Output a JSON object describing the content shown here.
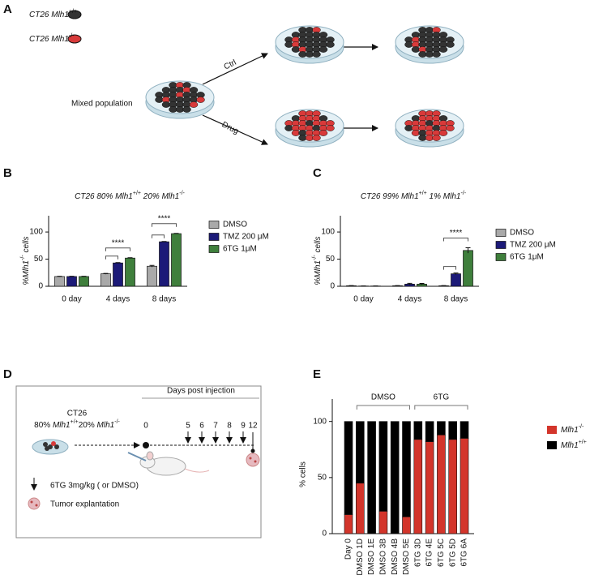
{
  "panel_labels": [
    "A",
    "B",
    "C",
    "D",
    "E"
  ],
  "panel_a": {
    "legend": [
      [
        {
          "text": "CT26 ",
          "italic": true
        },
        {
          "text": "Mlh1",
          "italic": true
        },
        {
          "text": "+/+",
          "sup": true
        }
      ],
      [
        {
          "text": "CT26 ",
          "italic": true
        },
        {
          "text": "Mlh1",
          "italic": true
        },
        {
          "text": "-/-",
          "sup": true
        }
      ]
    ],
    "mixed": "Mixed population",
    "ctrl": "Ctrl",
    "drug": "Drug"
  },
  "panel_d": {
    "cell_line": "CT26",
    "mix": [
      {
        "text": "80% "
      },
      {
        "text": "Mlh1",
        "italic": true
      },
      {
        "text": "+/+",
        "sup": true
      },
      {
        "text": "20% "
      },
      {
        "text": "Mlh1",
        "italic": true
      },
      {
        "text": "-/-",
        "sup": true
      }
    ],
    "timeline_title": "Days post injection",
    "days": [
      0,
      5,
      6,
      7,
      8,
      9,
      12
    ],
    "treatment": "6TG 3mg/kg ( or DMSO)",
    "endpoint": "Tumor explantation"
  },
  "chart_data": [
    {
      "type": "bar",
      "title": [
        {
          "text": "CT26  80% ",
          "italic": true
        },
        {
          "text": "Mlh1",
          "italic": true
        },
        {
          "text": "+/+",
          "sup": true
        },
        {
          "text": " 20% ",
          "italic": true
        },
        {
          "text": "Mlh1",
          "italic": true
        },
        {
          "text": "-/-",
          "sup": true
        }
      ],
      "y_label": [
        {
          "text": "%",
          "italic": true
        },
        {
          "text": "Mlh1",
          "italic": true
        },
        {
          "text": "-/-",
          "sup": true
        },
        {
          "text": " cells",
          "italic": true
        }
      ],
      "categories": [
        "0 day",
        "4 days",
        "8 days"
      ],
      "series": [
        {
          "name": "DMSO",
          "color": "#a9a9a9",
          "values": [
            18,
            23,
            37
          ],
          "errors": [
            0.5,
            0.8,
            1.5
          ]
        },
        {
          "name": "TMZ 200 μM",
          "color": "#1c1a78",
          "values": [
            18,
            43,
            82
          ],
          "errors": [
            0.4,
            0.8,
            0.6
          ]
        },
        {
          "name": "6TG 1μM",
          "color": "#3f7f3c",
          "values": [
            18,
            52,
            97
          ],
          "errors": [
            0.4,
            0.7,
            0.5
          ]
        }
      ],
      "annotations": [
        null,
        "****",
        "****"
      ],
      "ylim": [
        0,
        130
      ],
      "yticks": [
        0,
        50,
        100
      ]
    },
    {
      "type": "bar",
      "title": [
        {
          "text": "CT26  99% ",
          "italic": true
        },
        {
          "text": "Mlh1",
          "italic": true
        },
        {
          "text": "+/+",
          "sup": true
        },
        {
          "text": " 1% ",
          "italic": true
        },
        {
          "text": "Mlh1",
          "italic": true
        },
        {
          "text": "-/-",
          "sup": true
        }
      ],
      "y_label": [
        {
          "text": "%",
          "italic": true
        },
        {
          "text": "Mlh1",
          "italic": true
        },
        {
          "text": "-/-",
          "sup": true
        },
        {
          "text": " cells",
          "italic": true
        }
      ],
      "categories": [
        "0 day",
        "4 days",
        "8 days"
      ],
      "series": [
        {
          "name": "DMSO",
          "color": "#a9a9a9",
          "values": [
            1,
            1,
            1
          ],
          "errors": [
            0.3,
            0.3,
            0.4
          ]
        },
        {
          "name": "TMZ 200 μM",
          "color": "#1c1a78",
          "values": [
            0.5,
            4,
            23
          ],
          "errors": [
            0.3,
            1.5,
            1.5
          ]
        },
        {
          "name": "6TG 1μM",
          "color": "#3f7f3c",
          "values": [
            0.5,
            4,
            66
          ],
          "errors": [
            0.3,
            1.2,
            5
          ]
        }
      ],
      "annotations": [
        null,
        null,
        "****"
      ],
      "ylim": [
        0,
        130
      ],
      "yticks": [
        0,
        50,
        100
      ]
    },
    {
      "type": "stacked_bar",
      "y_label": "% cells",
      "groups": [
        "DMSO",
        "6TG"
      ],
      "categories": [
        "Day 0",
        "DMSO 1D",
        "DMSO 1E",
        "DMSO 3B",
        "DMSO 4B",
        "DMSO 5E",
        "6TG 3D",
        "6TG 4E",
        "6TG 5C",
        "6TG 5D",
        "6TG 6A"
      ],
      "series": [
        {
          "name": [
            {
              "text": "Mlh1",
              "italic": true
            },
            {
              "text": "-/-",
              "sup": true
            }
          ],
          "color": "#d3352b",
          "values": [
            17,
            45,
            0,
            20,
            0,
            15,
            84,
            82,
            88,
            84,
            85
          ]
        },
        {
          "name": [
            {
              "text": "Mlh1",
              "italic": true
            },
            {
              "text": "+/+",
              "sup": true
            }
          ],
          "color": "#000000",
          "values": [
            83,
            55,
            100,
            80,
            100,
            85,
            16,
            18,
            12,
            16,
            15
          ]
        }
      ],
      "ylim": [
        0,
        120
      ],
      "yticks": [
        0,
        50,
        100
      ]
    }
  ]
}
